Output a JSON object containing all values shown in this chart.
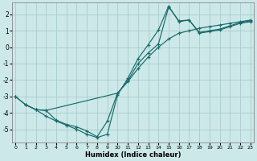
{
  "xlabel": "Humidex (Indice chaleur)",
  "xlim": [
    -0.3,
    23.3
  ],
  "ylim": [
    -5.8,
    2.7
  ],
  "xticks": [
    0,
    1,
    2,
    3,
    4,
    5,
    6,
    7,
    8,
    9,
    10,
    11,
    12,
    13,
    14,
    15,
    16,
    17,
    18,
    19,
    20,
    21,
    22,
    23
  ],
  "yticks": [
    -5,
    -4,
    -3,
    -2,
    -1,
    0,
    1,
    2
  ],
  "bg_color": "#cce8e8",
  "grid_color": "#aacccc",
  "line_color": "#1a6b6b",
  "line1_x": [
    0,
    1,
    2,
    3,
    10,
    11,
    12,
    13,
    14,
    15,
    16,
    17,
    18,
    19,
    20,
    21,
    22,
    23
  ],
  "line1_y": [
    -3.0,
    -3.5,
    -3.8,
    -3.85,
    -2.8,
    -2.1,
    -1.3,
    -0.6,
    0.0,
    0.5,
    0.85,
    1.0,
    1.15,
    1.25,
    1.35,
    1.45,
    1.55,
    1.65
  ],
  "line2_x": [
    0,
    1,
    2,
    3,
    4,
    5,
    6,
    7,
    8,
    9,
    10,
    11,
    12,
    13,
    14,
    15,
    16,
    17,
    18,
    19,
    20,
    21,
    22,
    23
  ],
  "line2_y": [
    -3.0,
    -3.5,
    -3.8,
    -3.85,
    -4.45,
    -4.7,
    -4.85,
    -5.1,
    -5.45,
    -4.5,
    -2.8,
    -2.05,
    -1.0,
    -0.35,
    0.2,
    2.45,
    1.6,
    1.65,
    0.9,
    1.0,
    1.1,
    1.3,
    1.5,
    1.6
  ],
  "line3_x": [
    1,
    2,
    3,
    4,
    5,
    6,
    7,
    8,
    9,
    10,
    11,
    12,
    13,
    14,
    15,
    16,
    17,
    18,
    19,
    20,
    21,
    22,
    23
  ],
  "line3_y": [
    -3.5,
    -3.8,
    -4.2,
    -4.5,
    -4.75,
    -5.0,
    -5.3,
    -5.5,
    -5.3,
    -2.9,
    -1.9,
    -0.7,
    0.15,
    1.05,
    2.5,
    1.55,
    1.65,
    0.85,
    0.95,
    1.05,
    1.25,
    1.45,
    1.55
  ]
}
